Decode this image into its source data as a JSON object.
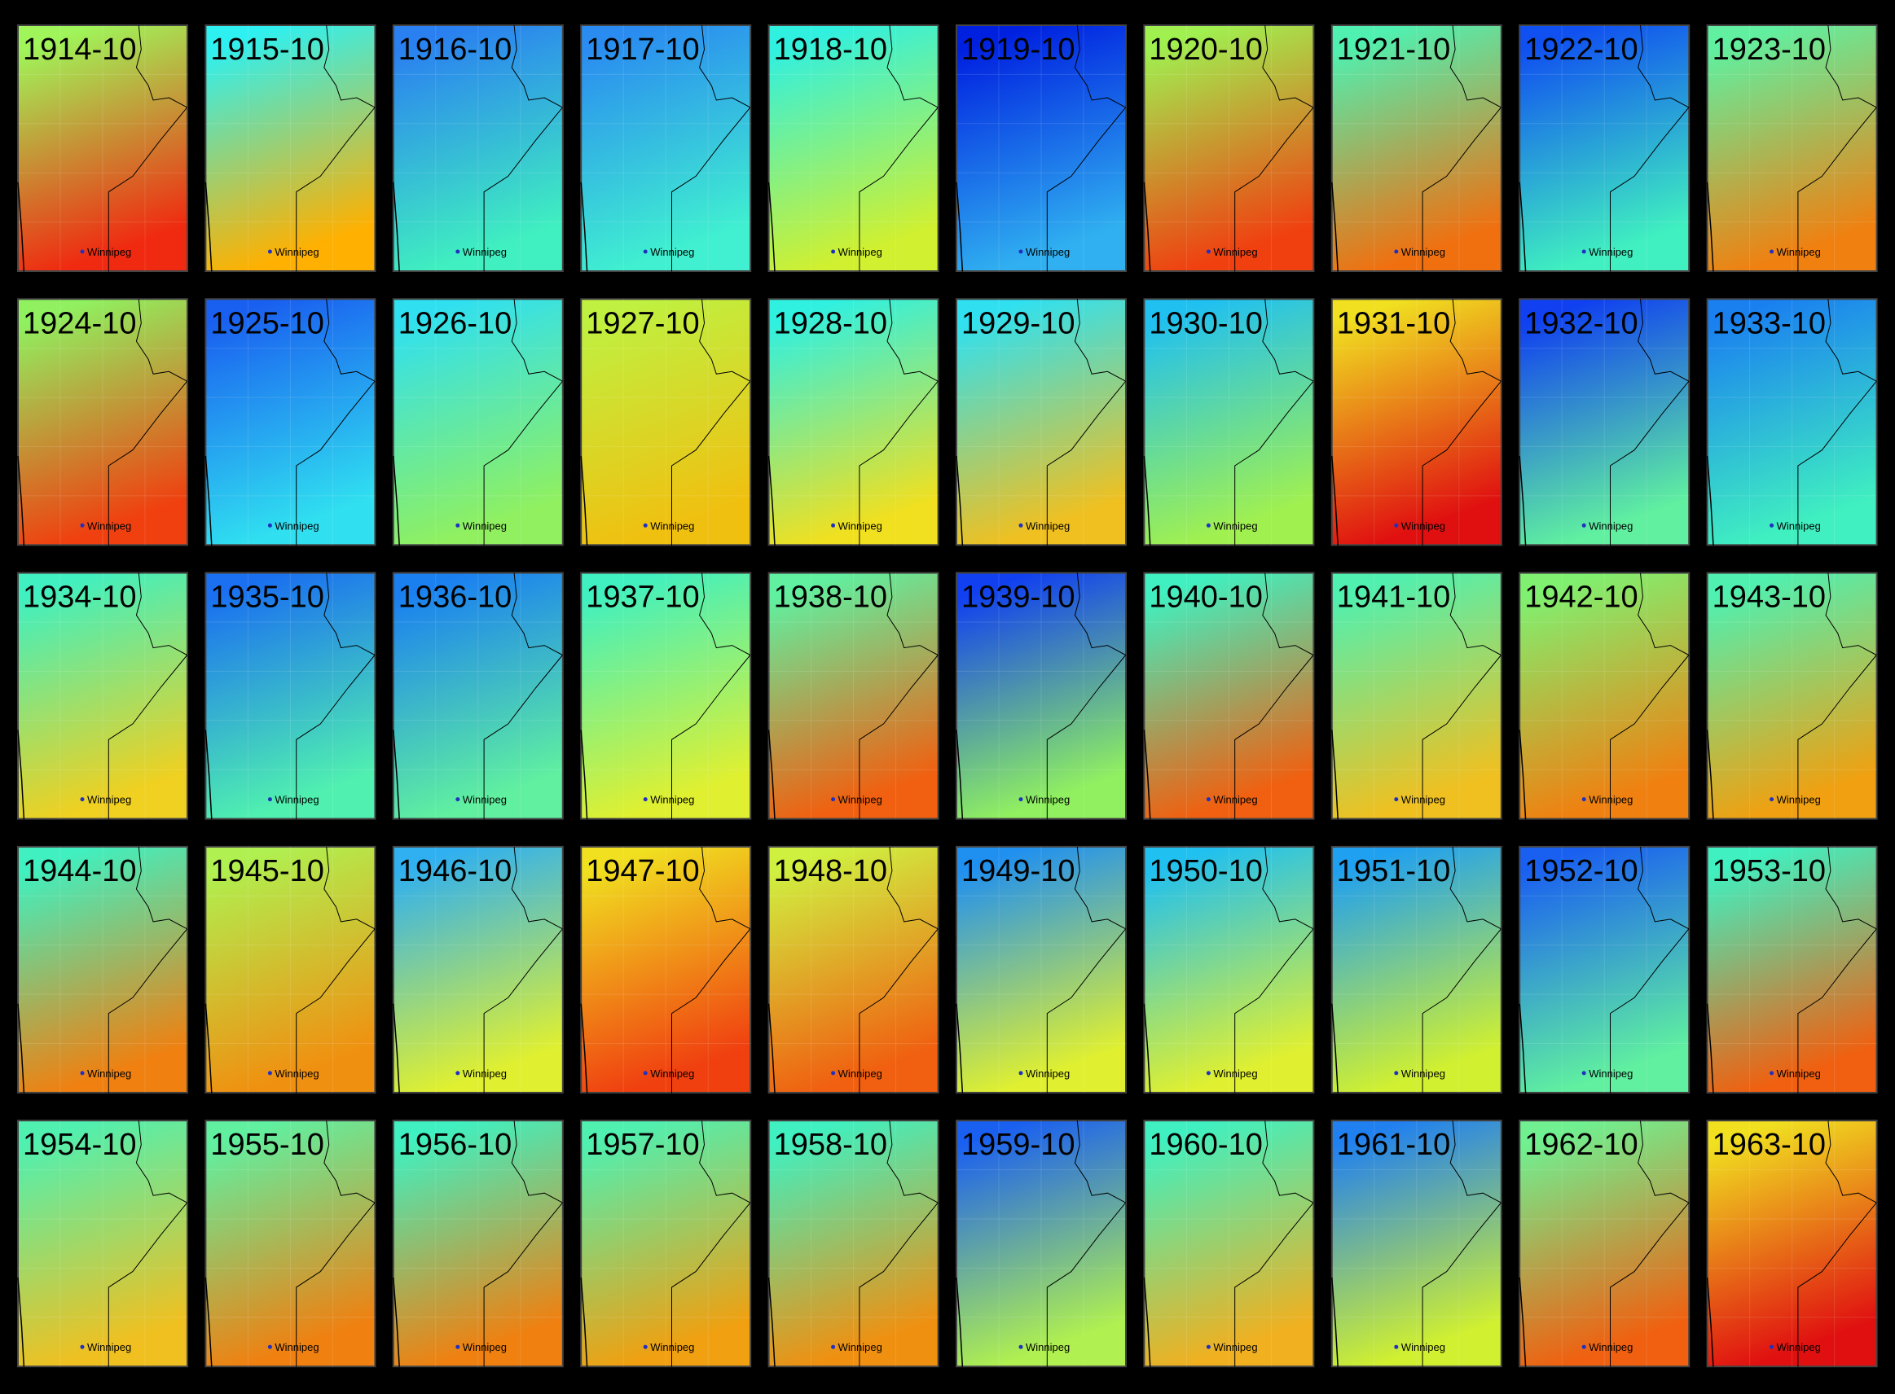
{
  "panels": [
    {
      "label": "1914-10",
      "place": "Winnipeg",
      "colors": [
        "#9ff55a",
        "#f02a10"
      ]
    },
    {
      "label": "1915-10",
      "place": "Winnipeg",
      "colors": [
        "#2ff0f0",
        "#ffb000"
      ]
    },
    {
      "label": "1916-10",
      "place": "Winnipeg",
      "colors": [
        "#2a80f0",
        "#40f0c0"
      ]
    },
    {
      "label": "1917-10",
      "place": "Winnipeg",
      "colors": [
        "#2a8cf0",
        "#40f0d0"
      ]
    },
    {
      "label": "1918-10",
      "place": "Winnipeg",
      "colors": [
        "#30f0e0",
        "#d0f030"
      ]
    },
    {
      "label": "1919-10",
      "place": "Winnipeg",
      "colors": [
        "#0020e0",
        "#30b0f0"
      ]
    },
    {
      "label": "1920-10",
      "place": "Winnipeg",
      "colors": [
        "#a0f050",
        "#f04010"
      ]
    },
    {
      "label": "1921-10",
      "place": "Winnipeg",
      "colors": [
        "#50f0b0",
        "#f07010"
      ]
    },
    {
      "label": "1922-10",
      "place": "Winnipeg",
      "colors": [
        "#1050f0",
        "#40f0c0"
      ]
    },
    {
      "label": "1923-10",
      "place": "Winnipeg",
      "colors": [
        "#60f0a0",
        "#f08010"
      ]
    },
    {
      "label": "1924-10",
      "place": "Winnipeg",
      "colors": [
        "#90f060",
        "#f04010"
      ]
    },
    {
      "label": "1925-10",
      "place": "Winnipeg",
      "colors": [
        "#1a60f0",
        "#30e0f0"
      ]
    },
    {
      "label": "1926-10",
      "place": "Winnipeg",
      "colors": [
        "#30e0f0",
        "#90f060"
      ]
    },
    {
      "label": "1927-10",
      "place": "Winnipeg",
      "colors": [
        "#c0f040",
        "#f0c010"
      ]
    },
    {
      "label": "1928-10",
      "place": "Winnipeg",
      "colors": [
        "#30f0e0",
        "#f0e020"
      ]
    },
    {
      "label": "1929-10",
      "place": "Winnipeg",
      "colors": [
        "#30e0f0",
        "#f0c020"
      ]
    },
    {
      "label": "1930-10",
      "place": "Winnipeg",
      "colors": [
        "#20c0f0",
        "#a0f050"
      ]
    },
    {
      "label": "1931-10",
      "place": "Winnipeg",
      "colors": [
        "#f0e020",
        "#e01010"
      ]
    },
    {
      "label": "1932-10",
      "place": "Winnipeg",
      "colors": [
        "#1040f0",
        "#60f0a0"
      ]
    },
    {
      "label": "1933-10",
      "place": "Winnipeg",
      "colors": [
        "#1a80f0",
        "#40f0c0"
      ]
    },
    {
      "label": "1934-10",
      "place": "Winnipeg",
      "colors": [
        "#40f0c0",
        "#f0d020"
      ]
    },
    {
      "label": "1935-10",
      "place": "Winnipeg",
      "colors": [
        "#1a70f0",
        "#50f0b0"
      ]
    },
    {
      "label": "1936-10",
      "place": "Winnipeg",
      "colors": [
        "#1a80f0",
        "#60f0a0"
      ]
    },
    {
      "label": "1937-10",
      "place": "Winnipeg",
      "colors": [
        "#40f0c0",
        "#e0f030"
      ]
    },
    {
      "label": "1938-10",
      "place": "Winnipeg",
      "colors": [
        "#60f0a0",
        "#f06010"
      ]
    },
    {
      "label": "1939-10",
      "place": "Winnipeg",
      "colors": [
        "#1040f0",
        "#90f060"
      ]
    },
    {
      "label": "1940-10",
      "place": "Winnipeg",
      "colors": [
        "#40f0c0",
        "#f06010"
      ]
    },
    {
      "label": "1941-10",
      "place": "Winnipeg",
      "colors": [
        "#50f0b0",
        "#f0c020"
      ]
    },
    {
      "label": "1942-10",
      "place": "Winnipeg",
      "colors": [
        "#80f070",
        "#f08010"
      ]
    },
    {
      "label": "1943-10",
      "place": "Winnipeg",
      "colors": [
        "#50f0b0",
        "#f0a010"
      ]
    },
    {
      "label": "1944-10",
      "place": "Winnipeg",
      "colors": [
        "#40f0c0",
        "#f08010"
      ]
    },
    {
      "label": "1945-10",
      "place": "Winnipeg",
      "colors": [
        "#b0f050",
        "#f09010"
      ]
    },
    {
      "label": "1946-10",
      "place": "Winnipeg",
      "colors": [
        "#30b0f0",
        "#e0f030"
      ]
    },
    {
      "label": "1947-10",
      "place": "Winnipeg",
      "colors": [
        "#f0e020",
        "#f04010"
      ]
    },
    {
      "label": "1948-10",
      "place": "Winnipeg",
      "colors": [
        "#d0f040",
        "#f06010"
      ]
    },
    {
      "label": "1949-10",
      "place": "Winnipeg",
      "colors": [
        "#2090f0",
        "#e0f030"
      ]
    },
    {
      "label": "1950-10",
      "place": "Winnipeg",
      "colors": [
        "#20c0f0",
        "#e0f030"
      ]
    },
    {
      "label": "1951-10",
      "place": "Winnipeg",
      "colors": [
        "#20a0f0",
        "#d0f030"
      ]
    },
    {
      "label": "1952-10",
      "place": "Winnipeg",
      "colors": [
        "#1a60f0",
        "#60f0a0"
      ]
    },
    {
      "label": "1953-10",
      "place": "Winnipeg",
      "colors": [
        "#40f0c0",
        "#f06010"
      ]
    },
    {
      "label": "1954-10",
      "place": "Winnipeg",
      "colors": [
        "#50f0b0",
        "#f0c020"
      ]
    },
    {
      "label": "1955-10",
      "place": "Winnipeg",
      "colors": [
        "#60f0a0",
        "#f08010"
      ]
    },
    {
      "label": "1956-10",
      "place": "Winnipeg",
      "colors": [
        "#40f0c0",
        "#f08010"
      ]
    },
    {
      "label": "1957-10",
      "place": "Winnipeg",
      "colors": [
        "#50f0b0",
        "#f0a010"
      ]
    },
    {
      "label": "1958-10",
      "place": "Winnipeg",
      "colors": [
        "#40f0c0",
        "#f09010"
      ]
    },
    {
      "label": "1959-10",
      "place": "Winnipeg",
      "colors": [
        "#1a60f0",
        "#b0f050"
      ]
    },
    {
      "label": "1960-10",
      "place": "Winnipeg",
      "colors": [
        "#40f0c0",
        "#f0b020"
      ]
    },
    {
      "label": "1961-10",
      "place": "Winnipeg",
      "colors": [
        "#2080f0",
        "#d0f030"
      ]
    },
    {
      "label": "1962-10",
      "place": "Winnipeg",
      "colors": [
        "#70f090",
        "#f06010"
      ]
    },
    {
      "label": "1963-10",
      "place": "Winnipeg",
      "colors": [
        "#f0e020",
        "#e01010"
      ]
    }
  ]
}
